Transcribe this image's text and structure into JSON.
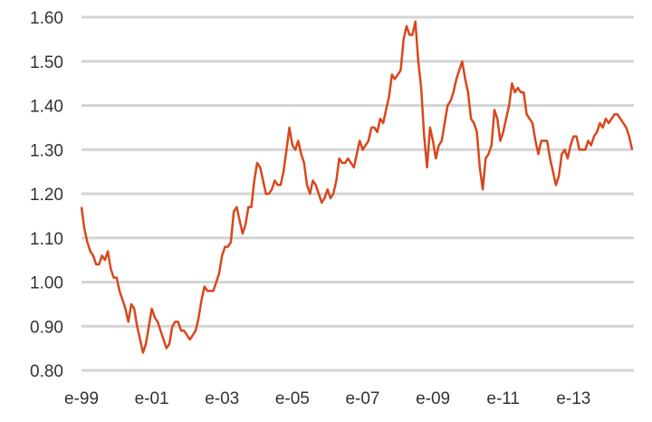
{
  "chart_data": {
    "type": "line",
    "title": "",
    "xlabel": "",
    "ylabel": "",
    "ylim": [
      0.8,
      1.6
    ],
    "yticks": [
      "1.60",
      "1.50",
      "1.40",
      "1.30",
      "1.20",
      "1.10",
      "1.00",
      "0.90",
      "0.80"
    ],
    "xticks": [
      {
        "label": "e-99",
        "x": "1999-01"
      },
      {
        "label": "e-01",
        "x": "2001-01"
      },
      {
        "label": "e-03",
        "x": "2003-01"
      },
      {
        "label": "e-05",
        "x": "2005-01"
      },
      {
        "label": "e-07",
        "x": "2007-01"
      },
      {
        "label": "e-09",
        "x": "2009-01"
      },
      {
        "label": "e-11",
        "x": "2011-01"
      },
      {
        "label": "e-13",
        "x": "2013-01"
      }
    ],
    "grid": "horizontal",
    "colors": {
      "line": "#d9471d",
      "grid": "#d4d4d4"
    },
    "series": [
      {
        "start": "1999-01",
        "frequency": "monthly",
        "values": [
          1.17,
          1.12,
          1.09,
          1.07,
          1.06,
          1.04,
          1.04,
          1.06,
          1.05,
          1.07,
          1.03,
          1.01,
          1.01,
          0.98,
          0.96,
          0.94,
          0.91,
          0.95,
          0.94,
          0.9,
          0.87,
          0.84,
          0.86,
          0.9,
          0.94,
          0.92,
          0.91,
          0.89,
          0.87,
          0.85,
          0.86,
          0.9,
          0.91,
          0.91,
          0.89,
          0.89,
          0.88,
          0.87,
          0.88,
          0.89,
          0.92,
          0.96,
          0.99,
          0.98,
          0.98,
          0.98,
          1.0,
          1.02,
          1.06,
          1.08,
          1.08,
          1.09,
          1.16,
          1.17,
          1.14,
          1.11,
          1.13,
          1.17,
          1.17,
          1.23,
          1.27,
          1.26,
          1.23,
          1.2,
          1.2,
          1.21,
          1.23,
          1.22,
          1.22,
          1.25,
          1.3,
          1.35,
          1.31,
          1.3,
          1.32,
          1.29,
          1.27,
          1.22,
          1.2,
          1.23,
          1.22,
          1.2,
          1.18,
          1.19,
          1.21,
          1.19,
          1.2,
          1.23,
          1.28,
          1.27,
          1.27,
          1.28,
          1.27,
          1.26,
          1.29,
          1.32,
          1.3,
          1.31,
          1.32,
          1.35,
          1.35,
          1.34,
          1.37,
          1.36,
          1.39,
          1.42,
          1.47,
          1.46,
          1.47,
          1.48,
          1.55,
          1.58,
          1.56,
          1.56,
          1.59,
          1.5,
          1.44,
          1.33,
          1.26,
          1.35,
          1.32,
          1.28,
          1.31,
          1.32,
          1.36,
          1.4,
          1.41,
          1.43,
          1.46,
          1.48,
          1.5,
          1.46,
          1.43,
          1.37,
          1.36,
          1.34,
          1.26,
          1.21,
          1.28,
          1.29,
          1.31,
          1.39,
          1.37,
          1.32,
          1.34,
          1.37,
          1.4,
          1.45,
          1.43,
          1.44,
          1.43,
          1.43,
          1.38,
          1.37,
          1.36,
          1.32,
          1.29,
          1.32,
          1.32,
          1.32,
          1.28,
          1.25,
          1.22,
          1.24,
          1.29,
          1.3,
          1.28,
          1.31,
          1.33,
          1.33,
          1.3,
          1.3,
          1.3,
          1.32,
          1.31,
          1.33,
          1.34,
          1.36,
          1.35,
          1.37,
          1.36,
          1.37,
          1.38,
          1.38,
          1.37,
          1.36,
          1.35,
          1.33,
          1.3
        ]
      }
    ]
  }
}
